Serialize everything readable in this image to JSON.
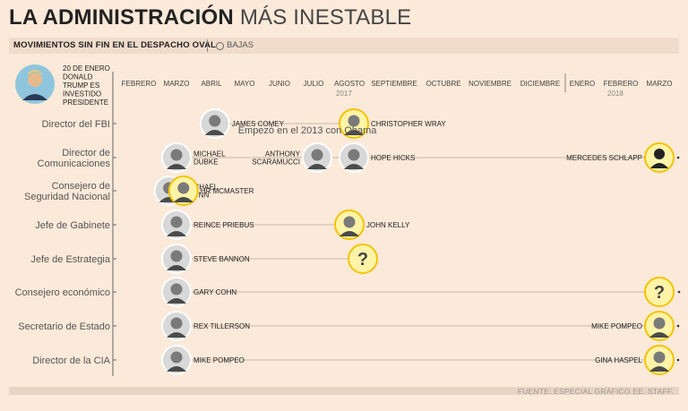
{
  "header": {
    "title_bold": "LA ADMINISTRACIÓN",
    "title_light": "MÁS INESTABLE",
    "subtitle": "MOVIMIENTOS SIN FIN EN EL DESPACHO OVAL",
    "legend_label": "BAJAS",
    "source": "FUENTE: ESPECIAL GRÁFICO EE. STAFF."
  },
  "colors": {
    "background": "#fbe9d9",
    "active_ring": "#f3c400",
    "active_bg": "#fff3a8",
    "departed_ring": "#ffffff",
    "photo_gray": "#7a7a7a"
  },
  "chart_data": {
    "type": "timeline",
    "start_event": [
      "20 DE ENERO",
      "DONALD",
      "TRUMP ES",
      "INVESTIDO",
      "PRESIDENTE"
    ],
    "months": [
      "FEBRERO",
      "MARZO",
      "ABRIL",
      "MAYO",
      "JUNIO",
      "JULIO",
      "AGOSTO",
      "SEPTIEMBRE",
      "OCTUBRE",
      "NOVIEMBRE",
      "DICIEMBRE",
      "ENERO",
      "FEBRERO",
      "MARZO"
    ],
    "years": [
      {
        "label": "2017",
        "month": "AGOSTO"
      },
      {
        "label": "2018",
        "month": "FEBRERO"
      }
    ],
    "rows": [
      {
        "role": "Director del FBI",
        "note": "Empezó en el 2013 con Obama",
        "people": [
          {
            "name": [
              "JAMES COMEY"
            ],
            "month": 3.1,
            "status": "departed"
          },
          {
            "name": [
              "CHRISTOPHER WRAY"
            ],
            "month": 7.1,
            "status": "current"
          }
        ]
      },
      {
        "role": [
          "Director de",
          "Comunicaciones"
        ],
        "people": [
          {
            "name": [
              "MICHAEL",
              "DUBKE"
            ],
            "month": 2.0,
            "status": "departed"
          },
          {
            "name": [
              "ANTHONY",
              "SCARAMUCCI"
            ],
            "month": 6.1,
            "status": "departed",
            "label_side": "left"
          },
          {
            "name": [
              "HOPE HICKS"
            ],
            "month": 7.1,
            "status": "departed"
          },
          {
            "name": [
              "MERCEDES SCHLAPP"
            ],
            "month": 14.0,
            "status": "current",
            "label_side": "left",
            "silhouette": true
          }
        ]
      },
      {
        "role": [
          "Consejero de",
          "Seguridad Nacional"
        ],
        "people": [
          {
            "name": [
              "MICHAEL",
              "FLYNN"
            ],
            "month": 1.8,
            "status": "departed"
          },
          {
            "name": [
              "HR MCMASTER"
            ],
            "month": 2.2,
            "status": "current"
          }
        ]
      },
      {
        "role": "Jefe de Gabinete",
        "people": [
          {
            "name": [
              "REINCE PRIEBUS"
            ],
            "month": 2.0,
            "status": "departed"
          },
          {
            "name": [
              "JOHN KELLY"
            ],
            "month": 7.0,
            "status": "current"
          }
        ]
      },
      {
        "role": "Jefe de Estrategia",
        "people": [
          {
            "name": [
              "STEVE BANNON"
            ],
            "month": 2.0,
            "status": "departed"
          },
          {
            "name": [],
            "month": 7.3,
            "status": "unknown"
          }
        ]
      },
      {
        "role": "Consejero económico",
        "people": [
          {
            "name": [
              "GARY COHN"
            ],
            "month": 2.0,
            "status": "departed"
          },
          {
            "name": [],
            "month": 14.0,
            "status": "unknown"
          }
        ]
      },
      {
        "role": "Secretario de Estado",
        "people": [
          {
            "name": [
              "REX TILLERSON"
            ],
            "month": 2.0,
            "status": "departed"
          },
          {
            "name": [
              "MIKE POMPEO"
            ],
            "month": 14.0,
            "status": "current",
            "label_side": "left"
          }
        ]
      },
      {
        "role": "Director de la CIA",
        "people": [
          {
            "name": [
              "MIKE POMPEO"
            ],
            "month": 2.0,
            "status": "departed"
          },
          {
            "name": [
              "GINA HASPEL"
            ],
            "month": 14.0,
            "status": "current",
            "label_side": "left"
          }
        ]
      }
    ]
  }
}
